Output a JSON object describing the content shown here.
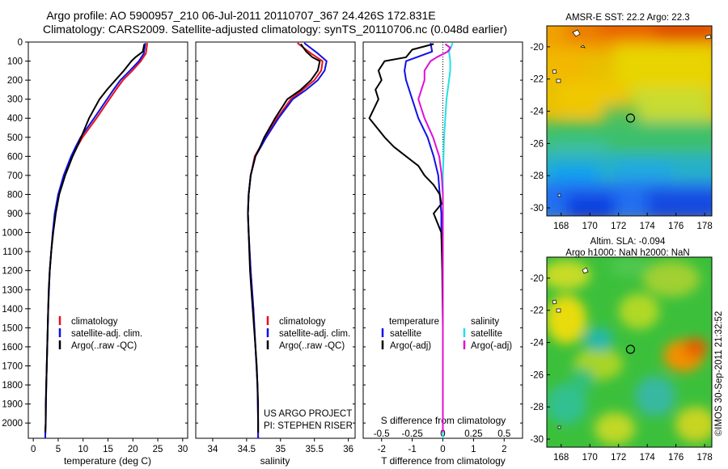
{
  "header": {
    "line1": "Argo profile: AO 5900957_210 06-Jul-2011 20110707_367 24.426S 172.831E",
    "line2": "Climatology: CARS2009. Satellite-adjusted climatology: synTS_20110706.nc (0.048d earlier)"
  },
  "footer_vertical": "©IMOS 30-Sep-2011 21:32:52",
  "colors": {
    "red": "#e8111b",
    "blue": "#1010e8",
    "black": "#000000",
    "cyan": "#22e0e8",
    "magenta": "#e010d8"
  },
  "chart_data": [
    {
      "type": "line",
      "panel": "temperature",
      "xlabel": "temperature (deg C)",
      "ylabel": "",
      "xlim": [
        -1,
        31
      ],
      "ylim": [
        2080,
        0
      ],
      "xticks": [
        0,
        5,
        10,
        15,
        20,
        25,
        30
      ],
      "yticks": [
        0,
        100,
        200,
        300,
        400,
        500,
        600,
        700,
        800,
        900,
        1000,
        1100,
        1200,
        1300,
        1400,
        1500,
        1600,
        1700,
        1800,
        1900,
        2000
      ],
      "legend": {
        "position": "bottom-center",
        "entries": [
          "climatology",
          "satellite-adj. clim.",
          "Argo(..raw -QC)"
        ]
      },
      "series": [
        {
          "name": "climatology",
          "color": "red",
          "depth": [
            5,
            60,
            100,
            150,
            200,
            250,
            300,
            400,
            500,
            550,
            600,
            700,
            800,
            900,
            1000,
            1200,
            1400,
            1600,
            1800,
            2000,
            2080
          ],
          "values": [
            22.9,
            22.6,
            21.6,
            19.9,
            18.0,
            16.6,
            15.3,
            12.7,
            9.9,
            8.8,
            7.8,
            6.2,
            5.1,
            4.4,
            3.9,
            3.3,
            3.0,
            2.8,
            2.6,
            2.5,
            2.4
          ]
        },
        {
          "name": "satellite-adj. clim.",
          "color": "blue",
          "depth": [
            5,
            60,
            100,
            150,
            200,
            250,
            300,
            400,
            500,
            550,
            600,
            700,
            800,
            900,
            1000,
            1200,
            1400,
            1600,
            1800,
            2000,
            2080
          ],
          "values": [
            22.5,
            22.2,
            21.2,
            19.4,
            17.5,
            16.1,
            14.8,
            12.2,
            9.5,
            8.5,
            7.6,
            6.1,
            5.0,
            4.3,
            3.9,
            3.3,
            3.0,
            2.8,
            2.6,
            2.5,
            2.4
          ]
        },
        {
          "name": "Argo(..raw -QC)",
          "color": "black",
          "depth": [
            10,
            50,
            80,
            100,
            150,
            200,
            250,
            300,
            400,
            500,
            550,
            600,
            700,
            800,
            900,
            1000,
            1100,
            1200,
            1300,
            1400,
            1500,
            1600,
            1700,
            1800,
            1900,
            2000,
            2050
          ],
          "values": [
            22.3,
            22.0,
            20.5,
            19.7,
            18.2,
            16.5,
            14.8,
            13.3,
            11.2,
            9.6,
            8.8,
            7.9,
            6.4,
            5.2,
            4.5,
            4.0,
            3.6,
            3.3,
            3.1,
            3.0,
            2.9,
            2.8,
            2.7,
            2.6,
            2.5,
            2.5,
            2.4
          ]
        }
      ]
    },
    {
      "type": "line",
      "panel": "salinity",
      "xlabel": "salinity",
      "xlim": [
        33.75,
        36.1
      ],
      "ylim": [
        2080,
        0
      ],
      "xticks": [
        34,
        34.5,
        35,
        35.5,
        36
      ],
      "legend": {
        "position": "bottom-center",
        "entries": [
          "climatology",
          "satellite-adj. clim.",
          "Argo(..raw -QC)"
        ]
      },
      "annotation": [
        "US ARGO PROJECT",
        "PI: STEPHEN RISER"
      ],
      "series": [
        {
          "name": "climatology",
          "color": "red",
          "depth": [
            5,
            60,
            100,
            150,
            200,
            250,
            300,
            400,
            500,
            550,
            600,
            700,
            800,
            900,
            1000,
            1200,
            1400,
            1600,
            1800,
            2000,
            2080
          ],
          "values": [
            35.25,
            35.45,
            35.62,
            35.6,
            35.5,
            35.33,
            35.15,
            34.95,
            34.78,
            34.7,
            34.62,
            34.56,
            34.53,
            34.52,
            34.53,
            34.56,
            34.6,
            34.63,
            34.66,
            34.67,
            34.67
          ]
        },
        {
          "name": "satellite-adj. clim.",
          "color": "blue",
          "depth": [
            5,
            60,
            100,
            150,
            200,
            250,
            300,
            400,
            500,
            550,
            600,
            700,
            800,
            900,
            1000,
            1200,
            1400,
            1600,
            1800,
            2000,
            2080
          ],
          "values": [
            35.35,
            35.55,
            35.68,
            35.65,
            35.55,
            35.38,
            35.18,
            34.97,
            34.79,
            34.71,
            34.63,
            34.56,
            34.53,
            34.52,
            34.53,
            34.56,
            34.6,
            34.63,
            34.66,
            34.67,
            34.67
          ]
        },
        {
          "name": "Argo(..raw -QC)",
          "color": "black",
          "depth": [
            10,
            50,
            80,
            100,
            150,
            200,
            250,
            300,
            400,
            500,
            550,
            600,
            700,
            800,
            900,
            1000,
            1100,
            1200,
            1300,
            1400,
            1500,
            1600,
            1700,
            1800,
            1900,
            2000,
            2050
          ],
          "values": [
            35.3,
            35.38,
            35.47,
            35.58,
            35.55,
            35.45,
            35.3,
            35.1,
            34.92,
            34.76,
            34.7,
            34.63,
            34.56,
            34.53,
            34.52,
            34.53,
            34.54,
            34.55,
            34.57,
            34.59,
            34.61,
            34.63,
            34.65,
            34.66,
            34.67,
            34.67,
            34.67
          ]
        }
      ]
    },
    {
      "type": "line",
      "panel": "difference",
      "xlabel_top": "S difference from climatology",
      "xlabel_bottom": "T difference from climatology",
      "xlim": [
        -2.6,
        2.6
      ],
      "ylim": [
        2080,
        0
      ],
      "xticks_T": [
        -2,
        -1,
        0,
        1,
        2
      ],
      "xticks_S": [
        -0.5,
        -0.25,
        0,
        0.25,
        0.5
      ],
      "legend": {
        "position": "bottom",
        "temperature_title": "temperature",
        "salinity_title": "salinity",
        "entries": [
          "satellite",
          "Argo(-adj)",
          "satellite",
          "Argo(-adj)"
        ]
      },
      "series": [
        {
          "name": "temperature satellite",
          "color": "blue",
          "depth": [
            5,
            50,
            100,
            150,
            200,
            300,
            400,
            500,
            600,
            700,
            800,
            900,
            1000,
            1200,
            1500,
            2000,
            2080
          ],
          "values": [
            -0.4,
            -0.35,
            -1.2,
            -1.25,
            -1.2,
            -1.0,
            -0.8,
            -0.5,
            -0.3,
            -0.15,
            -0.1,
            -0.05,
            -0.05,
            0,
            0,
            0,
            0
          ]
        },
        {
          "name": "temperature Argo(-adj)",
          "color": "black",
          "depth": [
            10,
            40,
            80,
            100,
            150,
            200,
            250,
            300,
            400,
            500,
            550,
            600,
            650,
            700,
            750,
            800,
            850,
            900,
            1000,
            1200,
            1500,
            2000,
            2050
          ],
          "values": [
            -0.3,
            -1.0,
            -1.2,
            -1.9,
            -2.1,
            -2.0,
            -2.2,
            -2.1,
            -2.4,
            -1.9,
            -1.6,
            -1.2,
            -0.8,
            -0.6,
            -0.3,
            -0.1,
            -0.05,
            -0.3,
            -0.05,
            -0.02,
            0,
            0,
            0
          ]
        },
        {
          "name": "salinity satellite",
          "color": "cyan",
          "depth": [
            5,
            50,
            100,
            150,
            200,
            300,
            400,
            500,
            600,
            700,
            800,
            1000,
            1500,
            2080
          ],
          "values": [
            0.08,
            0.05,
            0.06,
            0.06,
            0.05,
            0.03,
            0.02,
            0.01,
            0.005,
            0,
            0,
            0,
            0,
            0
          ]
        },
        {
          "name": "salinity Argo(-adj)",
          "color": "magenta",
          "depth": [
            10,
            30,
            50,
            80,
            100,
            150,
            200,
            300,
            400,
            500,
            600,
            700,
            800,
            1000,
            1500,
            2050
          ],
          "values": [
            0.02,
            0.06,
            0.04,
            -0.05,
            -0.1,
            -0.15,
            -0.15,
            -0.2,
            -0.15,
            -0.08,
            -0.03,
            -0.01,
            0,
            0,
            0,
            0
          ]
        }
      ]
    },
    {
      "type": "heatmap",
      "panel": "sst_map",
      "title": "AMSR-E SST: 22.2  Argo: 22.3",
      "xticks": [
        168,
        170,
        172,
        174,
        176,
        178
      ],
      "yticks": [
        -20,
        -22,
        -24,
        -26,
        -28,
        -30
      ],
      "xlim": [
        167,
        178.5
      ],
      "ylim": [
        -30.5,
        -18.7
      ],
      "marker": {
        "lon": 172.831,
        "lat": -24.426
      }
    },
    {
      "type": "heatmap",
      "panel": "sla_map",
      "title_line1": "Altim. SLA: -0.094",
      "title_line2": "Argo h1000: NaN  h2000: NaN",
      "xticks": [
        168,
        170,
        172,
        174,
        176,
        178
      ],
      "yticks": [
        -20,
        -22,
        -24,
        -26,
        -28,
        -30
      ],
      "xlim": [
        167,
        178.5
      ],
      "ylim": [
        -30.5,
        -18.7
      ],
      "marker": {
        "lon": 172.831,
        "lat": -24.426
      }
    }
  ]
}
